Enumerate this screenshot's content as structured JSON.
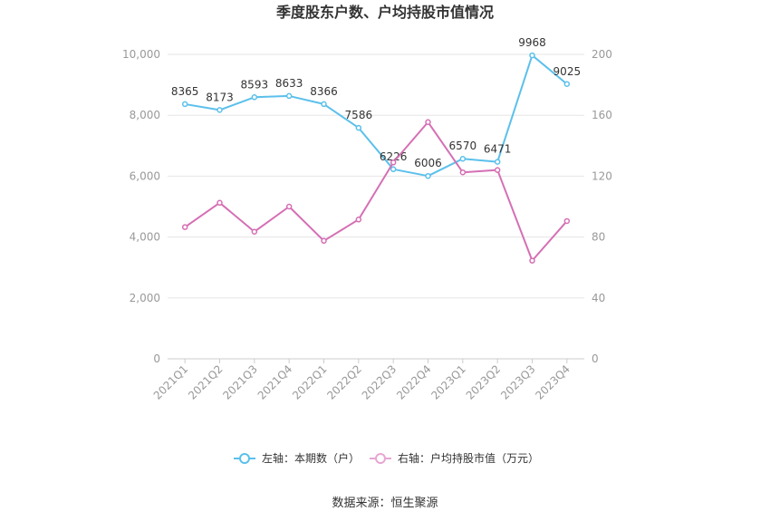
{
  "chart_data": {
    "type": "line",
    "title": "季度股东户数、户均持股市值情况",
    "categories": [
      "2021Q1",
      "2021Q2",
      "2021Q3",
      "2021Q4",
      "2022Q1",
      "2022Q2",
      "2022Q3",
      "2022Q4",
      "2023Q1",
      "2023Q2",
      "2023Q3",
      "2023Q4"
    ],
    "left_axis": {
      "ylim": [
        0,
        10000
      ],
      "ticks": [
        "0",
        "2,000",
        "4,000",
        "6,000",
        "8,000",
        "10,000"
      ]
    },
    "right_axis": {
      "ylim": [
        0,
        200
      ],
      "ticks": [
        "0",
        "40",
        "80",
        "120",
        "160",
        "200"
      ]
    },
    "series": [
      {
        "name": "左轴：本期数（户）",
        "axis": "left",
        "color": "#5bc0eb",
        "values": [
          8365,
          8173,
          8593,
          8633,
          8366,
          7586,
          6226,
          6006,
          6570,
          6471,
          9968,
          9025
        ],
        "labels": [
          "8365",
          "8173",
          "8593",
          "8633",
          "8366",
          "7586",
          "6226",
          "6006",
          "6570",
          "6471",
          "9968",
          "9025"
        ]
      },
      {
        "name": "右轴：户均持股市值（万元）",
        "axis": "right",
        "color": "#d56fb4",
        "values": [
          86.5,
          102.5,
          83.5,
          100,
          77.5,
          91.5,
          129,
          155.5,
          122.5,
          124,
          64.5,
          90.5
        ]
      }
    ],
    "grid": true,
    "legend": "bottom"
  },
  "source": "数据来源：恒生聚源"
}
